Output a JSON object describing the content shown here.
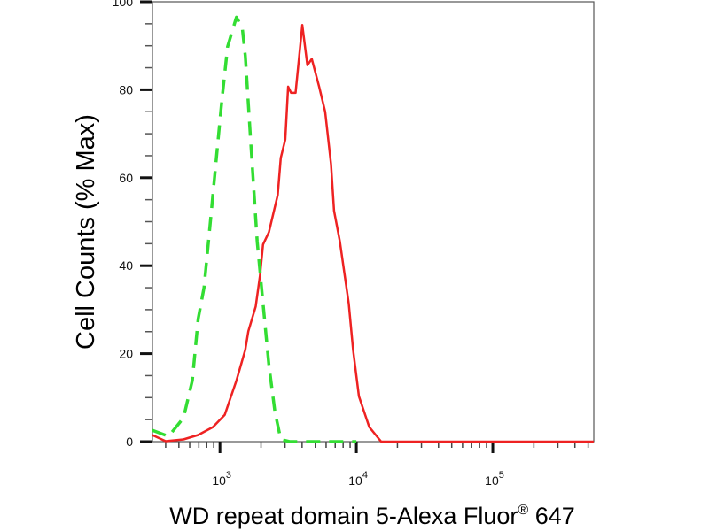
{
  "chart_data": {
    "type": "line",
    "title": "",
    "xlabel": "WD repeat domain 5-Alexa Fluor",
    "xlabel_superscript": "®",
    "xlabel_suffix": " 647",
    "ylabel": "Cell Counts (% Max)",
    "x_scale": "log",
    "xlim": [
      320,
      550000
    ],
    "ylim": [
      0,
      100
    ],
    "x_ticks": [
      {
        "value": 1000,
        "base": "10",
        "exp": "3"
      },
      {
        "value": 10000,
        "base": "10",
        "exp": "4"
      },
      {
        "value": 100000,
        "base": "10",
        "exp": "5"
      }
    ],
    "y_ticks": [
      "0",
      "20",
      "40",
      "60",
      "80",
      "100"
    ],
    "grid": false,
    "legend": "none",
    "series": [
      {
        "color": "#ee2222",
        "style": "solid",
        "x": [
          319,
          400,
          540,
          692,
          887,
          1084,
          1321,
          1535,
          1614,
          1828,
          1968,
          2070,
          2286,
          2655,
          2793,
          3013,
          3162,
          3319,
          3581,
          4018,
          4375,
          4710,
          5333,
          5902,
          6516,
          6855,
          7568,
          8790,
          9462,
          10447,
          12445,
          15205,
          549541
        ],
        "y": [
          1.5,
          0.1,
          0.5,
          1.5,
          3.3,
          6.1,
          13.9,
          20.9,
          25.1,
          30.7,
          37.8,
          44.8,
          47.6,
          56.1,
          64.5,
          68.7,
          80.7,
          79.3,
          79.3,
          94.7,
          85.6,
          87.0,
          80.7,
          75.0,
          63.1,
          52.5,
          45.5,
          31.4,
          20.9,
          10.3,
          3.3,
          0,
          0
        ]
      },
      {
        "color": "#33dd33",
        "style": "dashed",
        "x": [
          319,
          420,
          540,
          627,
          692,
          764,
          845,
          933,
          1030,
          1138,
          1321,
          1459,
          1535,
          1694,
          1875,
          2070,
          2286,
          2529,
          2793,
          3243,
          10000
        ],
        "y": [
          2.6,
          1.2,
          5.4,
          13.9,
          27.9,
          35.0,
          49.0,
          63.1,
          77.1,
          89.8,
          96.5,
          94.0,
          87.7,
          66.6,
          45.5,
          31.4,
          17.4,
          6.8,
          0.5,
          0,
          0
        ]
      }
    ]
  }
}
